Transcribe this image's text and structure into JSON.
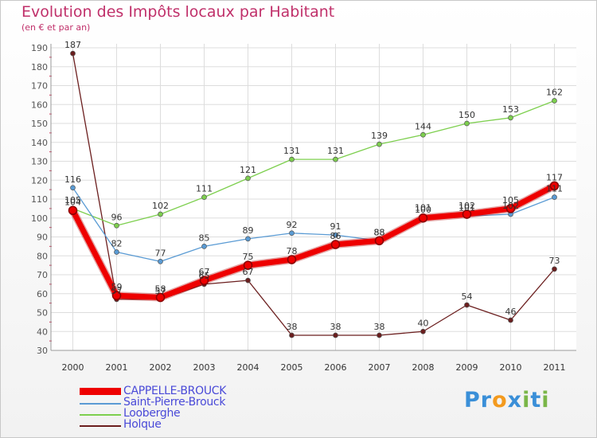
{
  "title": "Evolution des Impôts locaux par Habitant",
  "subtitle": "(en € et par an)",
  "chart_data": {
    "type": "line",
    "title": "Evolution des Impôts locaux par Habitant",
    "subtitle": "(en € et par an)",
    "xlabel": "",
    "ylabel": "",
    "categories": [
      "2000",
      "2001",
      "2002",
      "2003",
      "2004",
      "2005",
      "2006",
      "2007",
      "2008",
      "2009",
      "2010",
      "2011"
    ],
    "ylim": [
      30,
      190
    ],
    "yticks": [
      30,
      40,
      50,
      60,
      70,
      80,
      90,
      100,
      110,
      120,
      130,
      140,
      150,
      160,
      170,
      180,
      190
    ],
    "grid": true,
    "legend_position": "bottom-left",
    "series": [
      {
        "name": "Holque",
        "color": "#6b1e1e",
        "values": [
          187,
          57,
          57,
          65,
          67,
          38,
          38,
          38,
          40,
          54,
          46,
          73
        ]
      },
      {
        "name": "Looberghe",
        "color": "#7dcf4e",
        "values": [
          105,
          96,
          102,
          111,
          121,
          131,
          131,
          139,
          144,
          150,
          153,
          162
        ]
      },
      {
        "name": "Saint-Pierre-Brouck",
        "color": "#5a9bd4",
        "values": [
          116,
          82,
          77,
          85,
          89,
          92,
          91,
          88,
          101,
          101,
          102,
          111
        ]
      },
      {
        "name": "CAPPELLE-BROUCK",
        "color": "#ee0000",
        "values": [
          104,
          59,
          58,
          67,
          75,
          78,
          86,
          88,
          100,
          102,
          105,
          117
        ]
      }
    ]
  },
  "legend": {
    "items": [
      {
        "label": "CAPPELLE-BROUCK",
        "color": "#ee0000"
      },
      {
        "label": "Saint-Pierre-Brouck",
        "color": "#5a9bd4"
      },
      {
        "label": "Looberghe",
        "color": "#7dcf4e"
      },
      {
        "label": "Holque",
        "color": "#6b1e1e"
      }
    ]
  },
  "logo": {
    "p1": "Pr",
    "o": "o",
    "x": "x",
    "i1": "i",
    "t": "t",
    "i2": "i"
  }
}
